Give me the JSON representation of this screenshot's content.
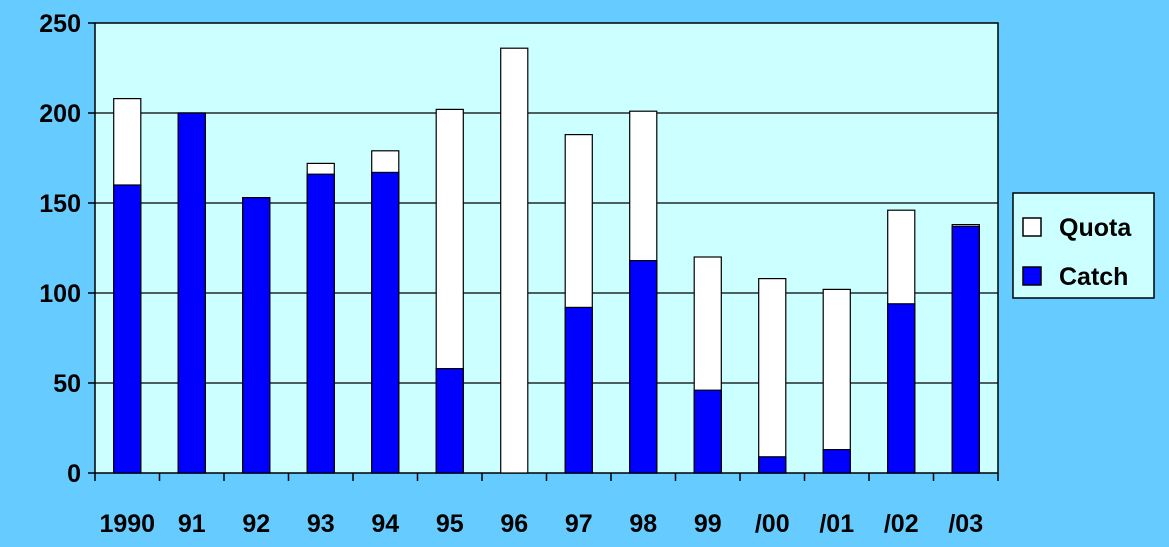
{
  "chart_data": {
    "type": "bar",
    "stacked": "overlay",
    "categories": [
      "1990",
      "91",
      "92",
      "93",
      "94",
      "95",
      "96",
      "97",
      "98",
      "99",
      "/00",
      "/01",
      "/02",
      "/03"
    ],
    "series": [
      {
        "name": "Quota",
        "values": [
          208,
          200,
          153,
          172,
          179,
          202,
          236,
          188,
          201,
          120,
          108,
          102,
          146,
          138
        ],
        "color": "#ffffff"
      },
      {
        "name": "Catch",
        "values": [
          160,
          200,
          153,
          166,
          167,
          58,
          0,
          92,
          118,
          46,
          9,
          13,
          94,
          137
        ],
        "color": "#0000ff"
      }
    ],
    "y_ticks": [
      0,
      50,
      100,
      150,
      200,
      250
    ],
    "ylim": [
      0,
      250
    ],
    "grid": true,
    "legend_position": "right",
    "plot_background": "#ccffff",
    "page_background": "#66ccff"
  }
}
